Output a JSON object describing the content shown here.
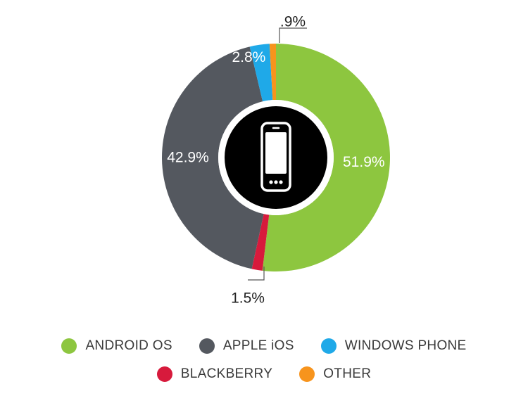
{
  "chart_data": {
    "type": "pie",
    "subtype": "donut",
    "title": "",
    "slices": [
      {
        "name": "ANDROID OS",
        "value": 51.9,
        "label": "51.9%",
        "color": "#8dc63f"
      },
      {
        "name": "BLACKBERRY",
        "value": 1.5,
        "label": "1.5%",
        "color": "#d71a3c"
      },
      {
        "name": "APPLE iOS",
        "value": 42.9,
        "label": "42.9%",
        "color": "#54585f"
      },
      {
        "name": "WINDOWS PHONE",
        "value": 2.8,
        "label": "2.8%",
        "color": "#1fa9e8"
      },
      {
        "name": "OTHER",
        "value": 0.9,
        "label": ".9%",
        "color": "#f7941d"
      }
    ],
    "legend_placement": "bottom",
    "center_icon": "smartphone-icon"
  },
  "legend": {
    "row1": [
      {
        "label": "ANDROID OS",
        "color": "#8dc63f"
      },
      {
        "label": "APPLE iOS",
        "color": "#54585f"
      },
      {
        "label": "WINDOWS PHONE",
        "color": "#1fa9e8"
      }
    ],
    "row2": [
      {
        "label": "BLACKBERRY",
        "color": "#d71a3c"
      },
      {
        "label": "OTHER",
        "color": "#f7941d"
      }
    ]
  }
}
